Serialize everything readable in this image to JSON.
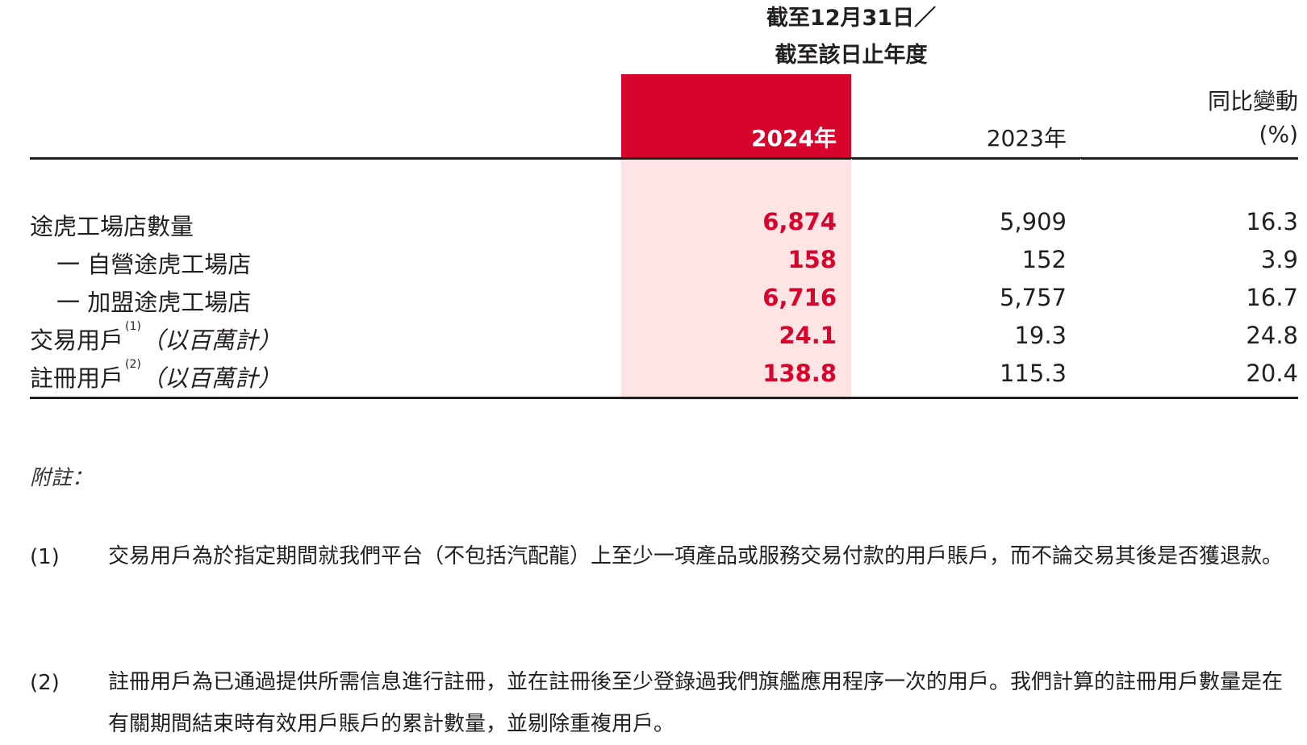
{
  "header": {
    "period_line1": "截至12月31日／",
    "period_line2": "截至該日止年度",
    "col_2024": "2024年",
    "col_2023": "2023年",
    "col_yoy_line1": "同比變動",
    "col_yoy_line2": "(%)"
  },
  "rows": [
    {
      "label": "途虎工場店數量",
      "note": "",
      "unit": "",
      "v2024": "6,874",
      "v2023": "5,909",
      "yoy": "16.3"
    },
    {
      "label": "一 自營途虎工場店",
      "note": "",
      "unit": "",
      "v2024": "158",
      "v2023": "152",
      "yoy": "3.9"
    },
    {
      "label": "一 加盟途虎工場店",
      "note": "",
      "unit": "",
      "v2024": "6,716",
      "v2023": "5,757",
      "yoy": "16.7"
    },
    {
      "label": "交易用戶",
      "note": "(1)",
      "unit": "（以百萬計）",
      "v2024": "24.1",
      "v2023": "19.3",
      "yoy": "24.8"
    },
    {
      "label": "註冊用戶",
      "note": "(2)",
      "unit": "（以百萬計）",
      "v2024": "138.8",
      "v2023": "115.3",
      "yoy": "20.4"
    }
  ],
  "footnotes": {
    "title": "附註：",
    "items": [
      {
        "num": "(1)",
        "text": "交易用戶為於指定期間就我們平台（不包括汽配龍）上至少一項產品或服務交易付款的用戶賬戶，而不論交易其後是否獲退款。"
      },
      {
        "num": "(2)",
        "text": "註冊用戶為已通過提供所需信息進行註冊，並在註冊後至少登錄過我們旗艦應用程序一次的用戶。我們計算的註冊用戶數量是在有關期間結束時有效用戶賬戶的累計數量，並剔除重複用戶。"
      }
    ]
  },
  "colors": {
    "accent": "#d7052c",
    "highlight_fill": "#fce5e4",
    "text": "#231f20"
  }
}
